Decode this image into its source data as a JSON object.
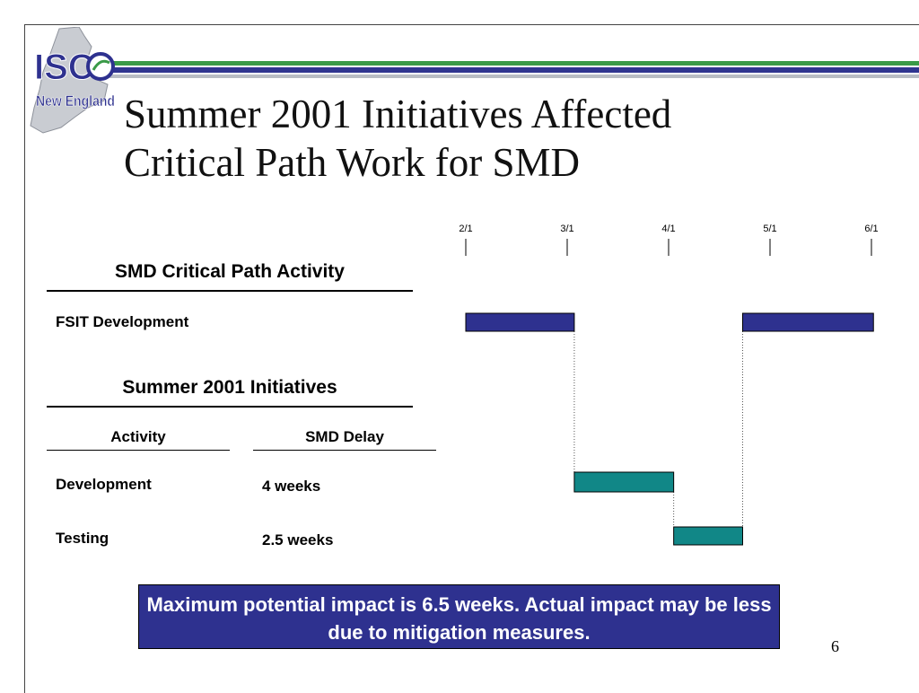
{
  "brand": {
    "logo_text_top": "ISO",
    "logo_text_bottom": "New England"
  },
  "title": {
    "line1": "Summer 2001 Initiatives Affected",
    "line2": "Critical Path Work for SMD"
  },
  "critical_path": {
    "header": "SMD Critical Path Activity",
    "activity": "FSIT Development"
  },
  "initiatives": {
    "header": "Summer 2001 Initiatives",
    "col_activity": "Activity",
    "col_delay": "SMD Delay",
    "rows": [
      {
        "activity": "Development",
        "delay": "4 weeks"
      },
      {
        "activity": "Testing",
        "delay": "2.5 weeks"
      }
    ]
  },
  "callout": {
    "text": "Maximum potential impact is 6.5 weeks.  Actual impact may be less due to mitigation measures."
  },
  "page_number": "6",
  "colors": {
    "navy": "#2e318f",
    "teal": "#118787",
    "green": "#3a9a48",
    "gray_stripe": "#b8bcc4"
  },
  "chart_data": {
    "type": "gantt",
    "timeline_ticks": [
      "2/1",
      "3/1",
      "4/1",
      "5/1",
      "6/1"
    ],
    "bars": [
      {
        "task": "FSIT Development",
        "start": 0.0,
        "end": 1.07,
        "color": "#2e318f",
        "row": 0
      },
      {
        "task": "FSIT Development",
        "start": 2.73,
        "end": 4.02,
        "color": "#2e318f",
        "row": 0
      },
      {
        "task": "Development",
        "start": 1.07,
        "end": 2.05,
        "color": "#118787",
        "row": 1
      },
      {
        "task": "Testing",
        "start": 2.05,
        "end": 2.73,
        "color": "#118787",
        "row": 2
      }
    ]
  }
}
